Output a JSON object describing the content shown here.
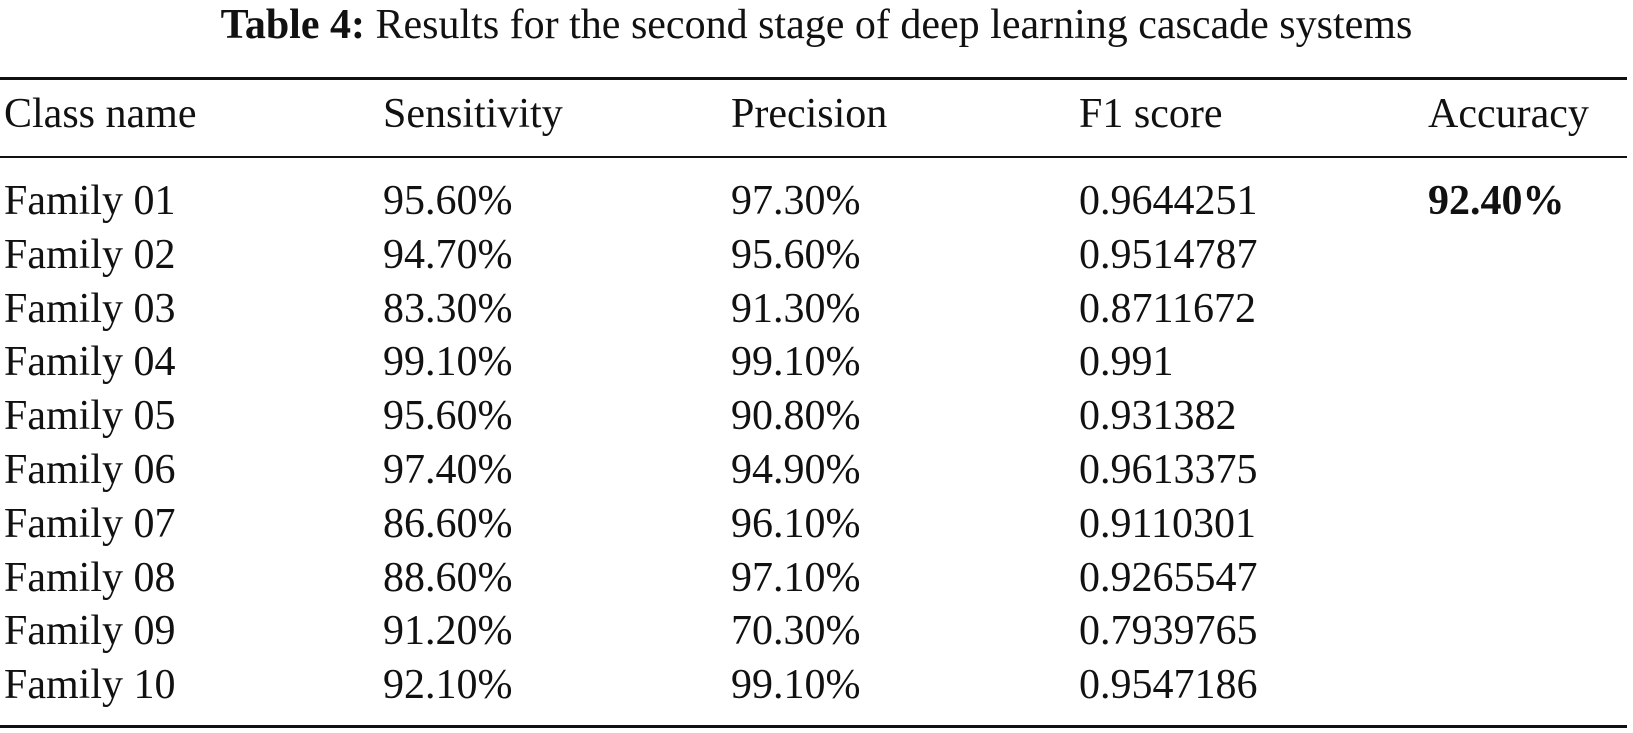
{
  "table": {
    "caption_label": "Table 4:",
    "caption_text": "Results for the second stage of deep learning cascade systems",
    "headers": [
      "Class name",
      "Sensitivity",
      "Precision",
      "F1 score",
      "Accuracy"
    ],
    "rows": [
      {
        "class_name": "Family 01",
        "sensitivity": "95.60%",
        "precision": "97.30%",
        "f1": "0.9644251",
        "accuracy": "92.40%"
      },
      {
        "class_name": "Family 02",
        "sensitivity": "94.70%",
        "precision": "95.60%",
        "f1": "0.9514787",
        "accuracy": ""
      },
      {
        "class_name": "Family 03",
        "sensitivity": "83.30%",
        "precision": "91.30%",
        "f1": "0.8711672",
        "accuracy": ""
      },
      {
        "class_name": "Family 04",
        "sensitivity": "99.10%",
        "precision": "99.10%",
        "f1": "0.991",
        "accuracy": ""
      },
      {
        "class_name": "Family 05",
        "sensitivity": "95.60%",
        "precision": "90.80%",
        "f1": "0.931382",
        "accuracy": ""
      },
      {
        "class_name": "Family 06",
        "sensitivity": "97.40%",
        "precision": "94.90%",
        "f1": "0.9613375",
        "accuracy": ""
      },
      {
        "class_name": "Family 07",
        "sensitivity": "86.60%",
        "precision": "96.10%",
        "f1": "0.9110301",
        "accuracy": ""
      },
      {
        "class_name": "Family 08",
        "sensitivity": "88.60%",
        "precision": "97.10%",
        "f1": "0.9265547",
        "accuracy": ""
      },
      {
        "class_name": "Family 09",
        "sensitivity": "91.20%",
        "precision": "70.30%",
        "f1": "0.7939765",
        "accuracy": ""
      },
      {
        "class_name": "Family 10",
        "sensitivity": "92.10%",
        "precision": "99.10%",
        "f1": "0.9547186",
        "accuracy": ""
      }
    ]
  }
}
